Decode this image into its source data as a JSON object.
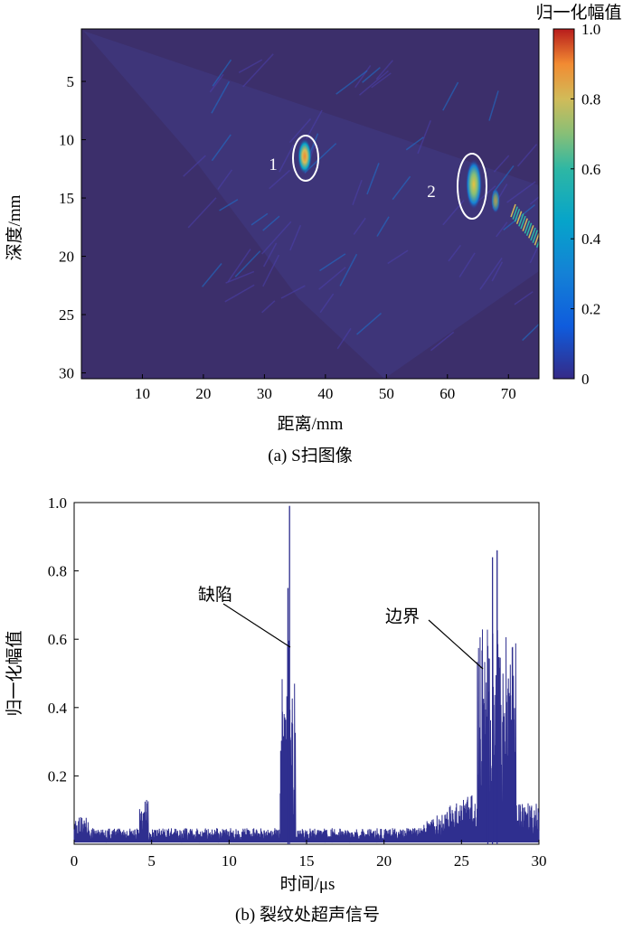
{
  "figure": {
    "caption_a": "(a) S扫图像",
    "caption_b": "(b) 裂纹处超声信号"
  },
  "colorbar": {
    "title": "归一化幅值",
    "ticks": [
      "1.0",
      "0.8",
      "0.6",
      "0.4",
      "0.2",
      "0"
    ]
  },
  "chart_data": [
    {
      "type": "heatmap",
      "xlabel": "距离/mm",
      "ylabel": "深度/mm",
      "xlim": [
        0,
        75
      ],
      "ylim": [
        30.5,
        0.5
      ],
      "xticks": [
        10,
        20,
        30,
        40,
        50,
        60,
        70
      ],
      "yticks": [
        5,
        10,
        15,
        20,
        25,
        30
      ],
      "colorbar_range": [
        0,
        1.0
      ],
      "annotations": [
        {
          "label": "1",
          "x": 37,
          "y": 11.3
        },
        {
          "label": "2",
          "x": 64.5,
          "y": 13.8
        }
      ]
    },
    {
      "type": "line",
      "xlabel": "时间/μs",
      "ylabel": "归一化幅值",
      "xlim": [
        0,
        30
      ],
      "ylim": [
        0,
        1.0
      ],
      "xticks": [
        0,
        5,
        10,
        15,
        20,
        25,
        30
      ],
      "yticks": [
        0.2,
        0.4,
        0.6,
        0.8,
        1.0
      ],
      "peaks": [
        {
          "x": 13.9,
          "y": 0.99
        },
        {
          "x": 13.8,
          "y": 0.75
        },
        {
          "x": 27.3,
          "y": 0.86
        },
        {
          "x": 27.0,
          "y": 0.84
        },
        {
          "x": 26.7,
          "y": 0.58
        }
      ],
      "annotations": [
        {
          "text": "缺陷",
          "x": 13.8,
          "y": 0.58
        },
        {
          "text": "边界",
          "x": 26.4,
          "y": 0.53
        }
      ]
    }
  ]
}
